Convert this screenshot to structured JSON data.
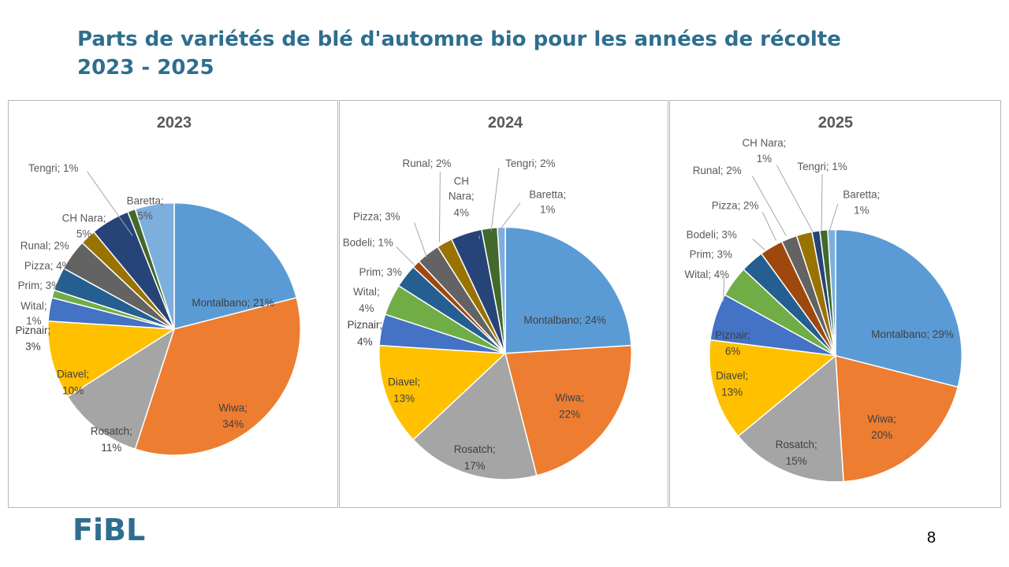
{
  "slide": {
    "title_line1": "Parts de variétés de blé d'automne bio pour les années de récolte",
    "title_line2": "2023 - 2025",
    "logo": "FiBL",
    "page_number": "8"
  },
  "colors": {
    "title": "#2e6e8e",
    "Montalbano": "#5b9bd5",
    "Wiwa": "#ed7d31",
    "Rosatch": "#a5a5a5",
    "Diavel": "#ffc000",
    "Piznair": "#4472c4",
    "Wital": "#70ad47",
    "Prim": "#255e91",
    "Bodeli": "#9e480e",
    "Pizza": "#636363",
    "Runal": "#997300",
    "CH Nara": "#264478",
    "Tengri": "#43682b",
    "Baretta": "#7cafdd"
  },
  "chart_data": [
    {
      "type": "pie",
      "title": "2023",
      "label_format": "{category}; {percent}%",
      "slices": [
        {
          "name": "Montalbano",
          "value": 21
        },
        {
          "name": "Wiwa",
          "value": 34
        },
        {
          "name": "Rosatch",
          "value": 11
        },
        {
          "name": "Diavel",
          "value": 10
        },
        {
          "name": "Piznair",
          "value": 3
        },
        {
          "name": "Wital",
          "value": 1
        },
        {
          "name": "Prim",
          "value": 3
        },
        {
          "name": "Pizza",
          "value": 4
        },
        {
          "name": "Runal",
          "value": 2
        },
        {
          "name": "CH Nara",
          "value": 5
        },
        {
          "name": "Tengri",
          "value": 1
        },
        {
          "name": "Baretta",
          "value": 5
        }
      ]
    },
    {
      "type": "pie",
      "title": "2024",
      "label_format": "{category}; {percent}%",
      "slices": [
        {
          "name": "Montalbano",
          "value": 24
        },
        {
          "name": "Wiwa",
          "value": 22
        },
        {
          "name": "Rosatch",
          "value": 17
        },
        {
          "name": "Diavel",
          "value": 13
        },
        {
          "name": "Piznair",
          "value": 4
        },
        {
          "name": "Wital",
          "value": 4
        },
        {
          "name": "Prim",
          "value": 3
        },
        {
          "name": "Bodeli",
          "value": 1
        },
        {
          "name": "Pizza",
          "value": 3
        },
        {
          "name": "Runal",
          "value": 2
        },
        {
          "name": "CH Nara",
          "value": 4
        },
        {
          "name": "Tengri",
          "value": 2
        },
        {
          "name": "Baretta",
          "value": 1
        }
      ]
    },
    {
      "type": "pie",
      "title": "2025",
      "label_format": "{category}; {percent}%",
      "slices": [
        {
          "name": "Montalbano",
          "value": 29
        },
        {
          "name": "Wiwa",
          "value": 20
        },
        {
          "name": "Rosatch",
          "value": 15
        },
        {
          "name": "Diavel",
          "value": 13
        },
        {
          "name": "Piznair",
          "value": 6
        },
        {
          "name": "Wital",
          "value": 4
        },
        {
          "name": "Prim",
          "value": 3
        },
        {
          "name": "Bodeli",
          "value": 3
        },
        {
          "name": "Pizza",
          "value": 2
        },
        {
          "name": "Runal",
          "value": 2
        },
        {
          "name": "CH Nara",
          "value": 1
        },
        {
          "name": "Tengri",
          "value": 1
        },
        {
          "name": "Baretta",
          "value": 1
        }
      ]
    }
  ]
}
